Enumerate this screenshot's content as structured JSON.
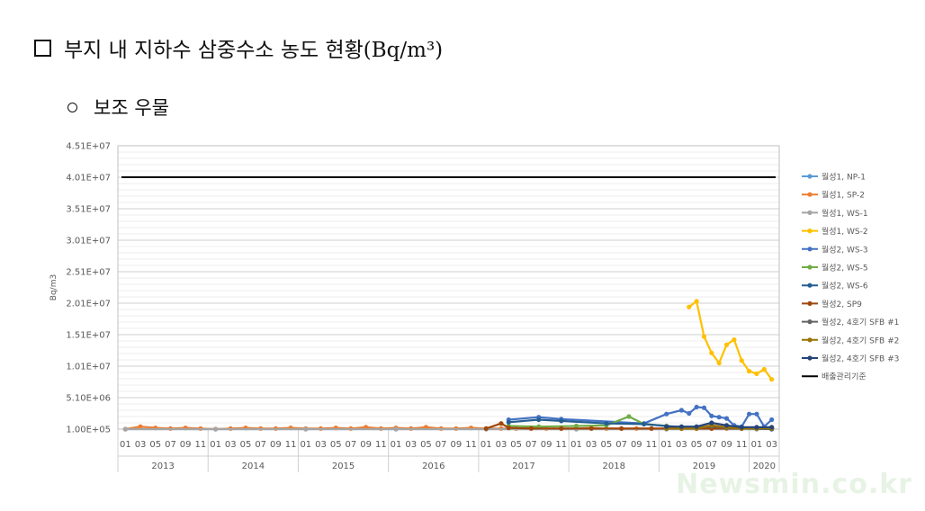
{
  "header": {
    "title": "부지 내 지하수 삼중수소 농도 현황(Bq/m³)",
    "section": "보조 우물"
  },
  "watermark": "Newsmin.co.kr",
  "chart_data": {
    "type": "line",
    "ylabel": "Bq/m3",
    "y_ticks": [
      "1.00E+05",
      "5.10E+06",
      "1.01E+07",
      "1.51E+07",
      "2.01E+07",
      "2.51E+07",
      "3.01E+07",
      "3.51E+07",
      "4.01E+07",
      "4.51E+07"
    ],
    "ylim": [
      100000,
      45100000
    ],
    "x_month_labels": [
      "01",
      "03",
      "05",
      "07",
      "09",
      "11",
      "01",
      "03",
      "05",
      "07",
      "09",
      "11",
      "01",
      "03",
      "05",
      "07",
      "09",
      "11",
      "01",
      "03",
      "05",
      "07",
      "09",
      "11",
      "01",
      "03",
      "05",
      "07",
      "09",
      "11",
      "01",
      "03",
      "05",
      "07",
      "09",
      "11",
      "01",
      "03",
      "05",
      "07",
      "09",
      "11",
      "01",
      "03"
    ],
    "years": [
      "2013",
      "2014",
      "2015",
      "2016",
      "2017",
      "2018",
      "2019",
      "2020"
    ],
    "grid": true,
    "legend_position": "right",
    "threshold": {
      "name": "배출관리기준",
      "value": 40100000,
      "color": "#000000"
    },
    "series": [
      {
        "name": "월성1, NP-1",
        "color": "#5b9bd5",
        "points": [
          [
            0,
            100000
          ],
          [
            12,
            100000
          ],
          [
            24,
            100000
          ],
          [
            36,
            100000
          ],
          [
            48,
            100000
          ],
          [
            60,
            100000
          ],
          [
            72,
            100000
          ],
          [
            84,
            100000
          ]
        ]
      },
      {
        "name": "월성1, SP-2",
        "color": "#ed7d31",
        "points": [
          [
            0,
            100000
          ],
          [
            2,
            500000
          ],
          [
            4,
            300000
          ],
          [
            6,
            200000
          ],
          [
            8,
            300000
          ],
          [
            10,
            200000
          ],
          [
            12,
            100000
          ],
          [
            14,
            200000
          ],
          [
            16,
            300000
          ],
          [
            18,
            200000
          ],
          [
            20,
            200000
          ],
          [
            22,
            300000
          ],
          [
            24,
            200000
          ],
          [
            26,
            200000
          ],
          [
            28,
            300000
          ],
          [
            30,
            200000
          ],
          [
            32,
            400000
          ],
          [
            34,
            200000
          ],
          [
            36,
            300000
          ],
          [
            38,
            200000
          ],
          [
            40,
            400000
          ],
          [
            42,
            200000
          ],
          [
            44,
            200000
          ],
          [
            46,
            300000
          ],
          [
            48,
            200000
          ],
          [
            50,
            200000
          ],
          [
            52,
            200000
          ],
          [
            54,
            300000
          ],
          [
            56,
            200000
          ],
          [
            58,
            200000
          ],
          [
            60,
            200000
          ],
          [
            62,
            300000
          ],
          [
            64,
            200000
          ],
          [
            66,
            200000
          ],
          [
            68,
            200000
          ],
          [
            70,
            200000
          ],
          [
            72,
            200000
          ],
          [
            74,
            200000
          ],
          [
            76,
            200000
          ],
          [
            78,
            200000
          ],
          [
            80,
            200000
          ],
          [
            82,
            200000
          ],
          [
            84,
            200000
          ],
          [
            86,
            200000
          ]
        ]
      },
      {
        "name": "월성1, WS-1",
        "color": "#a5a5a5",
        "points": [
          [
            0,
            100000
          ],
          [
            12,
            100000
          ],
          [
            24,
            100000
          ],
          [
            36,
            100000
          ],
          [
            48,
            100000
          ],
          [
            60,
            100000
          ],
          [
            72,
            100000
          ],
          [
            84,
            100000
          ],
          [
            86,
            100000
          ]
        ]
      },
      {
        "name": "월성1, WS-2",
        "color": "#ffc000",
        "points": [
          [
            75,
            19500000
          ],
          [
            76,
            20400000
          ],
          [
            77,
            14800000
          ],
          [
            78,
            12200000
          ],
          [
            79,
            10600000
          ],
          [
            80,
            13500000
          ],
          [
            81,
            14300000
          ],
          [
            82,
            11000000
          ],
          [
            83,
            9300000
          ],
          [
            84,
            8900000
          ],
          [
            85,
            9600000
          ],
          [
            86,
            8000000
          ]
        ]
      },
      {
        "name": "월성2, WS-3",
        "color": "#4472c4",
        "points": [
          [
            51,
            1600000
          ],
          [
            55,
            2000000
          ],
          [
            58,
            1700000
          ],
          [
            69,
            1000000
          ],
          [
            72,
            2500000
          ],
          [
            74,
            3100000
          ],
          [
            75,
            2600000
          ],
          [
            76,
            3600000
          ],
          [
            77,
            3500000
          ],
          [
            78,
            2200000
          ],
          [
            79,
            2000000
          ],
          [
            80,
            1800000
          ],
          [
            81,
            700000
          ],
          [
            82,
            500000
          ],
          [
            83,
            2500000
          ],
          [
            84,
            2500000
          ],
          [
            85,
            500000
          ],
          [
            86,
            1600000
          ]
        ]
      },
      {
        "name": "월성2, WS-5",
        "color": "#70ad47",
        "points": [
          [
            51,
            600000
          ],
          [
            55,
            500000
          ],
          [
            60,
            600000
          ],
          [
            64,
            700000
          ],
          [
            67,
            2100000
          ],
          [
            69,
            900000
          ],
          [
            72,
            600000
          ]
        ]
      },
      {
        "name": "월성2, WS-6",
        "color": "#255e91",
        "points": [
          [
            51,
            1200000
          ],
          [
            55,
            1600000
          ],
          [
            58,
            1400000
          ],
          [
            64,
            1000000
          ],
          [
            69,
            900000
          ],
          [
            74,
            400000
          ],
          [
            78,
            300000
          ],
          [
            82,
            200000
          ],
          [
            86,
            100000
          ]
        ]
      },
      {
        "name": "월성2, SP9",
        "color": "#9e480e",
        "points": [
          [
            48,
            200000
          ],
          [
            50,
            1000000
          ],
          [
            51,
            300000
          ],
          [
            54,
            200000
          ],
          [
            58,
            200000
          ],
          [
            62,
            200000
          ],
          [
            66,
            200000
          ],
          [
            70,
            200000
          ],
          [
            74,
            200000
          ],
          [
            78,
            200000
          ],
          [
            82,
            200000
          ],
          [
            86,
            200000
          ]
        ]
      },
      {
        "name": "월성2, 4호기 SFB #1",
        "color": "#636363",
        "points": [
          [
            72,
            300000
          ],
          [
            74,
            300000
          ],
          [
            76,
            300000
          ],
          [
            78,
            600000
          ],
          [
            80,
            300000
          ],
          [
            82,
            300000
          ],
          [
            84,
            300000
          ],
          [
            86,
            300000
          ]
        ]
      },
      {
        "name": "월성2, 4호기 SFB #2",
        "color": "#997300",
        "points": [
          [
            72,
            200000
          ],
          [
            74,
            200000
          ],
          [
            76,
            200000
          ],
          [
            78,
            700000
          ],
          [
            80,
            400000
          ],
          [
            82,
            200000
          ],
          [
            84,
            200000
          ],
          [
            86,
            200000
          ]
        ]
      },
      {
        "name": "월성2, 4호기 SFB #3",
        "color": "#264478",
        "points": [
          [
            72,
            500000
          ],
          [
            74,
            500000
          ],
          [
            76,
            500000
          ],
          [
            78,
            1100000
          ],
          [
            80,
            700000
          ],
          [
            82,
            400000
          ],
          [
            84,
            400000
          ],
          [
            86,
            400000
          ]
        ]
      }
    ]
  }
}
